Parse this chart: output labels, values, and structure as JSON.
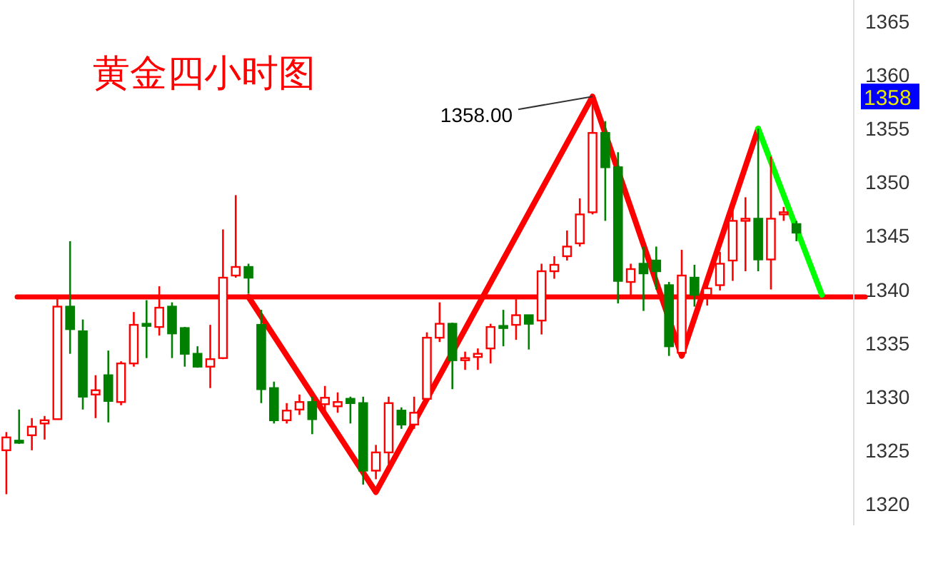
{
  "chart_data": {
    "type": "candlestick",
    "title": "黄金四小时图",
    "categories": [
      null,
      null,
      null,
      null,
      null,
      null,
      null,
      null,
      null,
      null,
      null,
      null,
      null,
      null,
      null,
      null,
      null,
      null,
      null,
      null,
      null,
      null,
      null,
      null,
      null,
      null,
      null,
      null,
      null,
      null,
      null,
      null,
      null,
      null,
      null,
      null,
      null,
      null,
      null,
      null,
      null,
      null,
      null,
      null,
      null,
      null,
      null,
      null,
      null,
      null,
      null,
      null,
      null,
      null,
      null,
      null,
      null,
      null,
      null,
      null,
      null,
      null,
      null,
      null,
      null,
      null,
      null
    ],
    "ohlc": [
      [
        1325.0,
        1326.7,
        1320.9,
        1326.2
      ],
      [
        1325.9,
        1328.8,
        1325.6,
        1325.7
      ],
      [
        1326.4,
        1328.0,
        1325.0,
        1327.2
      ],
      [
        1327.5,
        1328.2,
        1326.0,
        1327.8
      ],
      [
        1327.9,
        1339.2,
        1327.9,
        1338.4
      ],
      [
        1338.4,
        1344.5,
        1334.0,
        1336.3
      ],
      [
        1336.1,
        1337.2,
        1328.8,
        1330.0
      ],
      [
        1330.2,
        1332.0,
        1328.0,
        1330.6
      ],
      [
        1332.0,
        1334.3,
        1327.6,
        1329.6
      ],
      [
        1329.5,
        1333.3,
        1329.2,
        1333.1
      ],
      [
        1333.1,
        1337.9,
        1332.8,
        1336.7
      ],
      [
        1336.8,
        1339.0,
        1333.6,
        1336.6
      ],
      [
        1336.5,
        1340.3,
        1335.7,
        1338.3
      ],
      [
        1338.4,
        1338.8,
        1333.6,
        1335.9
      ],
      [
        1336.4,
        1336.5,
        1332.8,
        1334.0
      ],
      [
        1334.0,
        1334.7,
        1332.7,
        1332.8
      ],
      [
        1332.8,
        1336.7,
        1330.8,
        1333.5
      ],
      [
        1333.6,
        1345.6,
        1333.5,
        1341.1
      ],
      [
        1341.3,
        1348.8,
        1341.1,
        1342.1
      ],
      [
        1342.1,
        1342.4,
        1339.6,
        1341.1
      ],
      [
        1336.7,
        1338.1,
        1329.4,
        1330.7
      ],
      [
        1330.8,
        1331.4,
        1327.5,
        1327.8
      ],
      [
        1327.8,
        1329.4,
        1327.5,
        1328.7
      ],
      [
        1328.8,
        1330.2,
        1328.3,
        1329.5
      ],
      [
        1329.5,
        1330.0,
        1326.5,
        1327.9
      ],
      [
        1329.3,
        1331.0,
        1328.5,
        1329.9
      ],
      [
        1329.1,
        1330.4,
        1328.5,
        1329.5
      ],
      [
        1329.8,
        1330.0,
        1327.5,
        1329.4
      ],
      [
        1329.4,
        1330.0,
        1321.8,
        1323.1
      ],
      [
        1323.1,
        1325.5,
        1322.3,
        1324.8
      ],
      [
        1324.8,
        1330.0,
        1323.7,
        1329.4
      ],
      [
        1328.7,
        1329.0,
        1327.0,
        1327.4
      ],
      [
        1327.4,
        1330.0,
        1327.0,
        1328.5
      ],
      [
        1329.8,
        1336.0,
        1329.5,
        1335.5
      ],
      [
        1335.5,
        1338.8,
        1335.1,
        1336.8
      ],
      [
        1336.8,
        1336.9,
        1330.7,
        1333.4
      ],
      [
        1333.4,
        1334.2,
        1332.5,
        1333.6
      ],
      [
        1333.7,
        1334.5,
        1332.5,
        1334.0
      ],
      [
        1334.5,
        1336.8,
        1333.1,
        1336.5
      ],
      [
        1336.6,
        1338.1,
        1334.7,
        1336.4
      ],
      [
        1336.7,
        1339.1,
        1335.3,
        1337.6
      ],
      [
        1337.6,
        1337.6,
        1334.4,
        1336.8
      ],
      [
        1337.1,
        1342.4,
        1335.8,
        1341.7
      ],
      [
        1341.7,
        1343.1,
        1341.0,
        1342.3
      ],
      [
        1343.1,
        1345.5,
        1342.7,
        1344.0
      ],
      [
        1344.3,
        1348.5,
        1344.0,
        1347.0
      ],
      [
        1347.2,
        1358.0,
        1347.0,
        1354.6
      ],
      [
        1354.6,
        1355.7,
        1346.4,
        1351.4
      ],
      [
        1351.4,
        1352.8,
        1338.7,
        1340.8
      ],
      [
        1340.7,
        1342.4,
        1339.5,
        1341.9
      ],
      [
        1342.4,
        1344.0,
        1338.0,
        1341.5
      ],
      [
        1342.7,
        1344.0,
        1340.0,
        1341.7
      ],
      [
        1340.4,
        1340.7,
        1333.8,
        1334.7
      ],
      [
        1334.1,
        1343.7,
        1334.0,
        1341.3
      ],
      [
        1341.1,
        1342.3,
        1338.4,
        1339.5
      ],
      [
        1339.5,
        1341.0,
        1338.5,
        1340.1
      ],
      [
        1340.4,
        1343.5,
        1339.9,
        1342.4
      ],
      [
        1342.7,
        1348.0,
        1340.8,
        1346.4
      ],
      [
        1346.4,
        1348.6,
        1341.7,
        1346.6
      ],
      [
        1346.6,
        1355.0,
        1341.7,
        1342.8
      ],
      [
        1342.8,
        1352.4,
        1340.0,
        1346.6
      ],
      [
        1347.0,
        1347.7,
        1346.4,
        1347.2
      ],
      [
        1346.1,
        1346.4,
        1344.5,
        1345.3
      ],
      null,
      null,
      null,
      null
    ],
    "colors": [
      "#ff0000",
      "#008000",
      "#ff0000",
      "#ff0000",
      "#ff0000",
      "#008000",
      "#008000",
      "#ff0000",
      "#008000",
      "#ff0000",
      "#ff0000",
      "#008000",
      "#ff0000",
      "#008000",
      "#008000",
      "#008000",
      "#ff0000",
      "#ff0000",
      "#ff0000",
      "#008000",
      "#008000",
      "#008000",
      "#ff0000",
      "#ff0000",
      "#008000",
      "#ff0000",
      "#ff0000",
      "#008000",
      "#008000",
      "#ff0000",
      "#ff0000",
      "#008000",
      "#ff0000",
      "#ff0000",
      "#ff0000",
      "#008000",
      "#ff0000",
      "#ff0000",
      "#ff0000",
      "#008000",
      "#ff0000",
      "#008000",
      "#ff0000",
      "#ff0000",
      "#ff0000",
      "#ff0000",
      "#ff0000",
      "#008000",
      "#008000",
      "#ff0000",
      "#008000",
      "#008000",
      "#008000",
      "#ff0000",
      "#008000",
      "#ff0000",
      "#ff0000",
      "#ff0000",
      "#ff0000",
      "#008000",
      "#ff0000",
      "#ff0000",
      "#008000",
      null,
      null,
      null,
      null
    ],
    "series": [
      {
        "type": "line",
        "color": "#ff0000",
        "values": [
          null,
          null,
          null,
          null,
          null,
          null,
          null,
          null,
          null,
          null,
          null,
          null,
          null,
          null,
          null,
          null,
          null,
          null,
          null,
          1339.3,
          null,
          null,
          null,
          null,
          null,
          null,
          null,
          null,
          null,
          1321.1,
          null,
          null,
          null,
          null,
          null,
          null,
          null,
          null,
          null,
          null,
          null,
          null,
          null,
          null,
          null,
          null,
          1358.0,
          null,
          null,
          null,
          null,
          null,
          null,
          1333.8,
          null,
          null,
          null,
          null,
          null,
          1355.0,
          null,
          null,
          null,
          null,
          null,
          null,
          null
        ]
      },
      {
        "type": "line",
        "color": "#00ff00",
        "values": [
          null,
          null,
          null,
          null,
          null,
          null,
          null,
          null,
          null,
          null,
          null,
          null,
          null,
          null,
          null,
          null,
          null,
          null,
          null,
          null,
          null,
          null,
          null,
          null,
          null,
          null,
          null,
          null,
          null,
          null,
          null,
          null,
          null,
          null,
          null,
          null,
          null,
          null,
          null,
          null,
          null,
          null,
          null,
          null,
          null,
          null,
          null,
          null,
          null,
          null,
          null,
          null,
          null,
          null,
          null,
          null,
          null,
          null,
          null,
          1355.0,
          null,
          null,
          null,
          null,
          1339.5,
          null,
          null
        ]
      }
    ],
    "ref_lines": [
      {
        "axis": "y",
        "value": 1339.3,
        "color": "#ff0000"
      }
    ],
    "annotations": [
      "1358.00",
      {
        "text": "1358",
        "y": 1358
      }
    ],
    "ylim": [
      1318,
      1367
    ],
    "yticks": [
      1320,
      1325,
      1330,
      1335,
      1340,
      1345,
      1350,
      1355,
      1360,
      1365
    ],
    "tick_labels": "y"
  }
}
